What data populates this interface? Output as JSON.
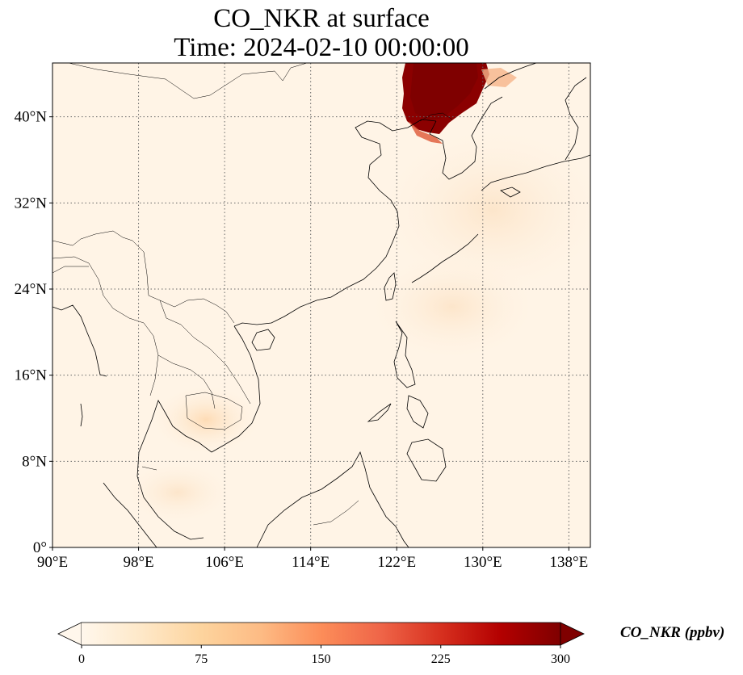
{
  "title": {
    "line1": "CO_NKR at surface",
    "line2": "Time: 2024-02-10 00:00:00"
  },
  "map": {
    "lon_range": [
      90,
      140
    ],
    "lat_range": [
      0,
      45
    ],
    "gridlines": "dotted",
    "lon_ticks": [
      {
        "value": 90,
        "label": "90°E"
      },
      {
        "value": 98,
        "label": "98°E"
      },
      {
        "value": 106,
        "label": "106°E"
      },
      {
        "value": 114,
        "label": "114°E"
      },
      {
        "value": 122,
        "label": "122°E"
      },
      {
        "value": 130,
        "label": "130°E"
      },
      {
        "value": 138,
        "label": "138°E"
      }
    ],
    "lat_ticks": [
      {
        "value": 0,
        "label": "0°"
      },
      {
        "value": 8,
        "label": "8°N"
      },
      {
        "value": 16,
        "label": "16°N"
      },
      {
        "value": 24,
        "label": "24°N"
      },
      {
        "value": 32,
        "label": "32°N"
      },
      {
        "value": 40,
        "label": "40°N"
      }
    ],
    "plume_regions": [
      {
        "name": "northeast-china",
        "lon": [
          122.5,
          129.5
        ],
        "lat": [
          37.8,
          45
        ],
        "level": "300"
      }
    ]
  },
  "colorbar": {
    "label": "CO_NKR (ppbv)",
    "min": 0,
    "max": 300,
    "extend": "both",
    "colormap": "OrRd",
    "colors": [
      "#fff7ec",
      "#fee8c8",
      "#fdd49e",
      "#fdbb84",
      "#fc8d59",
      "#ef6548",
      "#d7301f",
      "#b30000",
      "#7f0000"
    ],
    "ticks": [
      {
        "value": 0,
        "label": "0"
      },
      {
        "value": 75,
        "label": "75"
      },
      {
        "value": 150,
        "label": "150"
      },
      {
        "value": 225,
        "label": "225"
      },
      {
        "value": 300,
        "label": "300"
      }
    ]
  }
}
